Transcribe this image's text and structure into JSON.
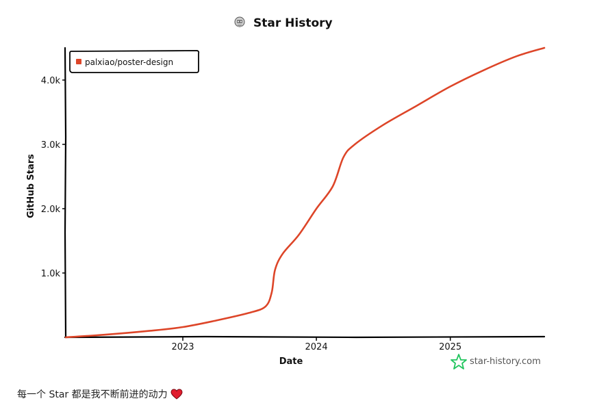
{
  "colors": {
    "series": "#dd4528",
    "axis": "#000000",
    "brand_star": "#22c55e",
    "brand_text": "#555555",
    "heart": "#e11d2e"
  },
  "chart_data": {
    "type": "line",
    "title": "Star History",
    "title_icon": "robot-avatar-icon",
    "xlabel": "Date",
    "ylabel": "GitHub Stars",
    "x_ticks": [
      "2023",
      "2024",
      "2025"
    ],
    "y_ticks": [
      "1.0k",
      "2.0k",
      "3.0k",
      "4.0k"
    ],
    "y_tick_values": [
      1000,
      2000,
      3000,
      4000
    ],
    "xlim": [
      "2022-02-15",
      "2025-09-15"
    ],
    "ylim": [
      0,
      4500
    ],
    "legend_position": "top-left",
    "grid": false,
    "series": [
      {
        "name": "palxiao/poster-design",
        "x": [
          "2022-02-15",
          "2022-06-01",
          "2022-10-01",
          "2023-01-01",
          "2023-04-01",
          "2023-07-01",
          "2023-08-15",
          "2023-09-01",
          "2023-09-10",
          "2023-10-01",
          "2023-11-15",
          "2024-01-01",
          "2024-02-15",
          "2024-03-15",
          "2024-04-15",
          "2024-07-01",
          "2024-10-01",
          "2025-01-01",
          "2025-04-01",
          "2025-07-01",
          "2025-09-15"
        ],
        "values": [
          0,
          40,
          100,
          160,
          260,
          380,
          480,
          700,
          1050,
          1300,
          1600,
          2000,
          2350,
          2800,
          3000,
          3300,
          3600,
          3900,
          4150,
          4370,
          4500
        ]
      }
    ],
    "watermark": "star-history.com"
  },
  "footer": {
    "text": "每一个 Star 都是我不断前进的动力",
    "icon": "heart-icon"
  }
}
